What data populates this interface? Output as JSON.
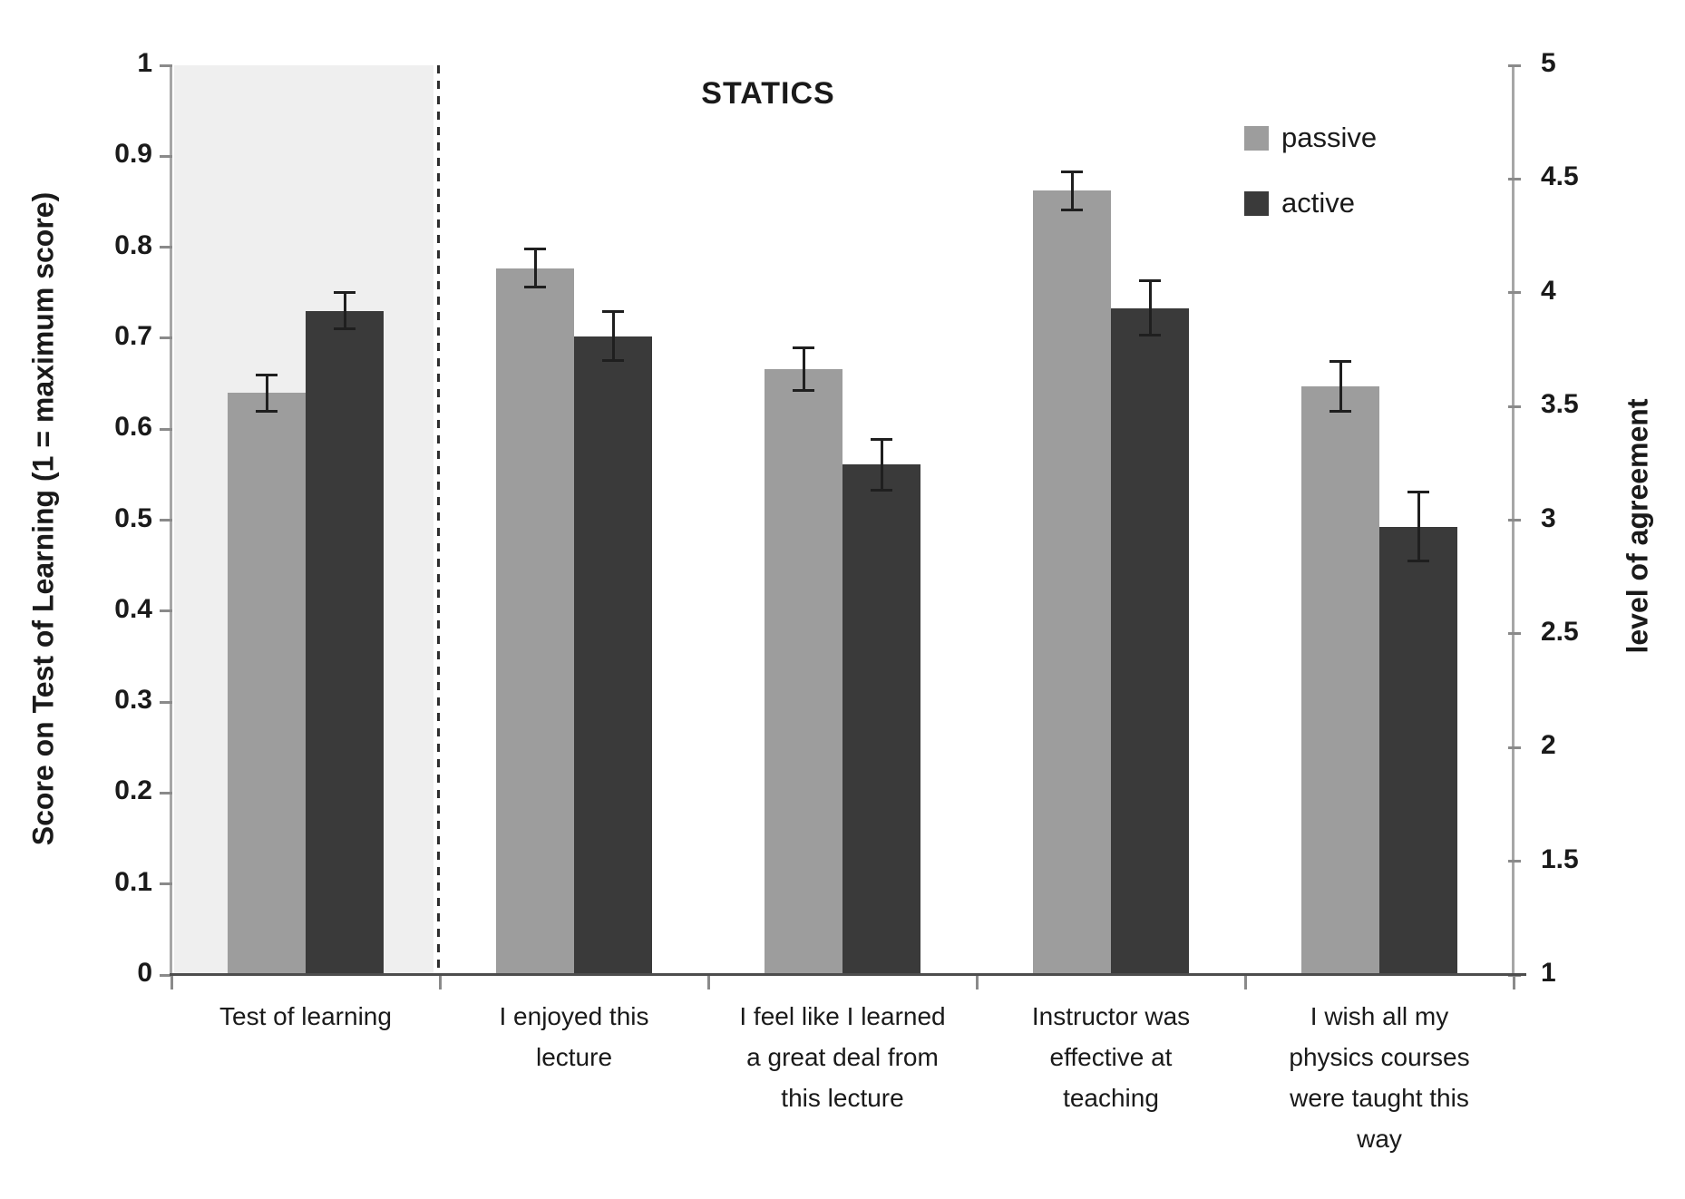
{
  "title": "STATICS",
  "left_axis": {
    "label": "Score on Test of Learning  (1 = maximum score)",
    "min": 0,
    "max": 1,
    "ticks": [
      "1",
      "0.9",
      "0.8",
      "0.7",
      "0.6",
      "0.5",
      "0.4",
      "0.3",
      "0.2",
      "0.1",
      "0"
    ]
  },
  "right_axis": {
    "label": "level of agreement",
    "min": 1,
    "max": 5,
    "ticks": [
      "5",
      "4.5",
      "4",
      "3.5",
      "3",
      "2.5",
      "2",
      "1.5",
      "1"
    ]
  },
  "legend": {
    "items": [
      {
        "label": "passive",
        "color": "#9d9d9d"
      },
      {
        "label": "active",
        "color": "#3a3a3a"
      }
    ]
  },
  "chart_data": {
    "type": "bar",
    "title": "STATICS",
    "categories": [
      "Test of learning",
      "I enjoyed this lecture",
      "I feel like I learned a great deal from this lecture",
      "Instructor was effective at teaching",
      "I wish all my physics courses were taught this way"
    ],
    "category_lines": [
      [
        "Test of learning"
      ],
      [
        "I enjoyed this",
        "lecture"
      ],
      [
        "I feel like I learned",
        "a great deal from",
        "this lecture"
      ],
      [
        "Instructor was",
        "effective at",
        "teaching"
      ],
      [
        "I wish all my",
        "physics courses",
        "were taught this",
        "way"
      ]
    ],
    "series": [
      {
        "name": "passive",
        "color": "#9d9d9d",
        "values_left_scale": [
          0.64,
          0.777,
          0.666,
          0.862,
          0.647
        ],
        "errors_left_scale": [
          0.02,
          0.021,
          0.023,
          0.021,
          0.027
        ],
        "agreement_values": [
          null,
          4.11,
          3.66,
          4.45,
          3.59
        ]
      },
      {
        "name": "active",
        "color": "#3a3a3a",
        "values_left_scale": [
          0.73,
          0.702,
          0.561,
          0.733,
          0.493
        ],
        "errors_left_scale": [
          0.02,
          0.027,
          0.028,
          0.03,
          0.038
        ],
        "agreement_values": [
          null,
          3.81,
          3.24,
          3.93,
          2.97
        ]
      }
    ],
    "left_axis_range": [
      0,
      1
    ],
    "right_axis_range": [
      1,
      5
    ],
    "error_bars": true,
    "grid": false,
    "legend_position": "top-right",
    "annotations": {
      "shaded_category": "Test of learning",
      "divider_style": "dashed vertical line separating Test of learning from survey items"
    }
  }
}
